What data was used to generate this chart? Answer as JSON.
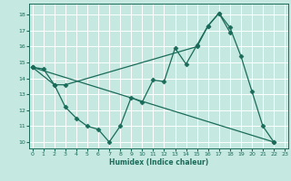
{
  "xlabel": "Humidex (Indice chaleur)",
  "bg_color": "#c5e8e0",
  "grid_color": "#ffffff",
  "line_color": "#1a6b5a",
  "line1_x": [
    0,
    1,
    2,
    3,
    4,
    5,
    6,
    7,
    8,
    9,
    10,
    11,
    12,
    13,
    14,
    15,
    16,
    17,
    18,
    19,
    20,
    21,
    22
  ],
  "line1_y": [
    14.7,
    14.6,
    13.6,
    12.2,
    11.5,
    11.0,
    10.8,
    10.0,
    11.0,
    12.8,
    12.5,
    13.9,
    13.8,
    15.9,
    14.9,
    16.1,
    17.3,
    18.1,
    17.2,
    15.4,
    13.2,
    11.0,
    10.0
  ],
  "line2_x": [
    0,
    2,
    3,
    15,
    16,
    17,
    18
  ],
  "line2_y": [
    14.7,
    13.6,
    13.6,
    16.0,
    17.3,
    18.1,
    16.9
  ],
  "line3_x": [
    0,
    22
  ],
  "line3_y": [
    14.7,
    10.0
  ],
  "xlim": [
    -0.3,
    23.3
  ],
  "ylim": [
    9.6,
    18.7
  ],
  "yticks": [
    10,
    11,
    12,
    13,
    14,
    15,
    16,
    17,
    18
  ],
  "xticks": [
    0,
    1,
    2,
    3,
    4,
    5,
    6,
    7,
    8,
    9,
    10,
    11,
    12,
    13,
    14,
    15,
    16,
    17,
    18,
    19,
    20,
    21,
    22,
    23
  ]
}
